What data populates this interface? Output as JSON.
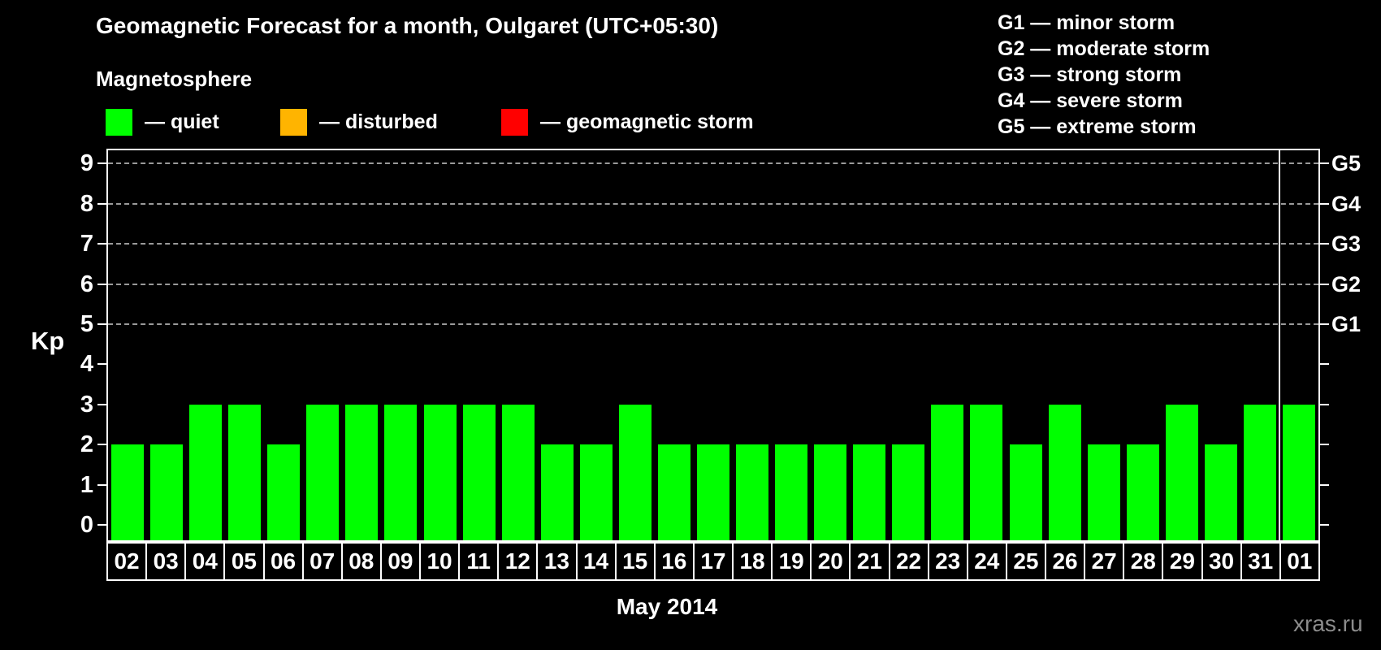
{
  "header": {
    "title": "Geomagnetic Forecast for a month, Oulgaret (UTC+05:30)"
  },
  "magnetosphere_legend": {
    "heading": "Magnetosphere",
    "items": [
      {
        "name": "quiet",
        "label": "— quiet",
        "color": "#00ff00"
      },
      {
        "name": "disturbed",
        "label": "— disturbed",
        "color": "#ffb400"
      },
      {
        "name": "geomagnetic-storm",
        "label": "— geomagnetic storm",
        "color": "#ff0000"
      }
    ]
  },
  "storm_scale_legend": {
    "lines": [
      "G1 — minor storm",
      "G2 — moderate storm",
      "G3 — strong storm",
      "G4 — severe storm",
      "G5 — extreme storm"
    ]
  },
  "chart_data": {
    "type": "bar",
    "title": "Geomagnetic Forecast for a month, Oulgaret (UTC+05:30)",
    "ylabel": "Kp",
    "xlabel": "May 2014",
    "categories": [
      "02",
      "03",
      "04",
      "05",
      "06",
      "07",
      "08",
      "09",
      "10",
      "11",
      "12",
      "13",
      "14",
      "15",
      "16",
      "17",
      "18",
      "19",
      "20",
      "21",
      "22",
      "23",
      "24",
      "25",
      "26",
      "27",
      "28",
      "29",
      "30",
      "31",
      "01"
    ],
    "values": [
      2,
      2,
      3,
      3,
      2,
      3,
      3,
      3,
      3,
      3,
      3,
      2,
      2,
      3,
      2,
      2,
      2,
      2,
      2,
      2,
      2,
      3,
      3,
      2,
      3,
      2,
      2,
      3,
      2,
      3,
      3
    ],
    "bar_color": "#00ff00",
    "ylim": [
      0,
      9
    ],
    "yticks_left": [
      0,
      1,
      2,
      3,
      4,
      5,
      6,
      7,
      8,
      9
    ],
    "yticks_right_labels": [
      {
        "value": 5,
        "label": "G1"
      },
      {
        "value": 6,
        "label": "G2"
      },
      {
        "value": 7,
        "label": "G3"
      },
      {
        "value": 8,
        "label": "G4"
      },
      {
        "value": 9,
        "label": "G5"
      }
    ],
    "gridlines_at": [
      5,
      6,
      7,
      8,
      9
    ],
    "grid_style": "dashed",
    "legend_position": "top-left",
    "month_separator_after_category": "31"
  },
  "footer": {
    "month_label": "May 2014",
    "watermark": "xras.ru"
  }
}
